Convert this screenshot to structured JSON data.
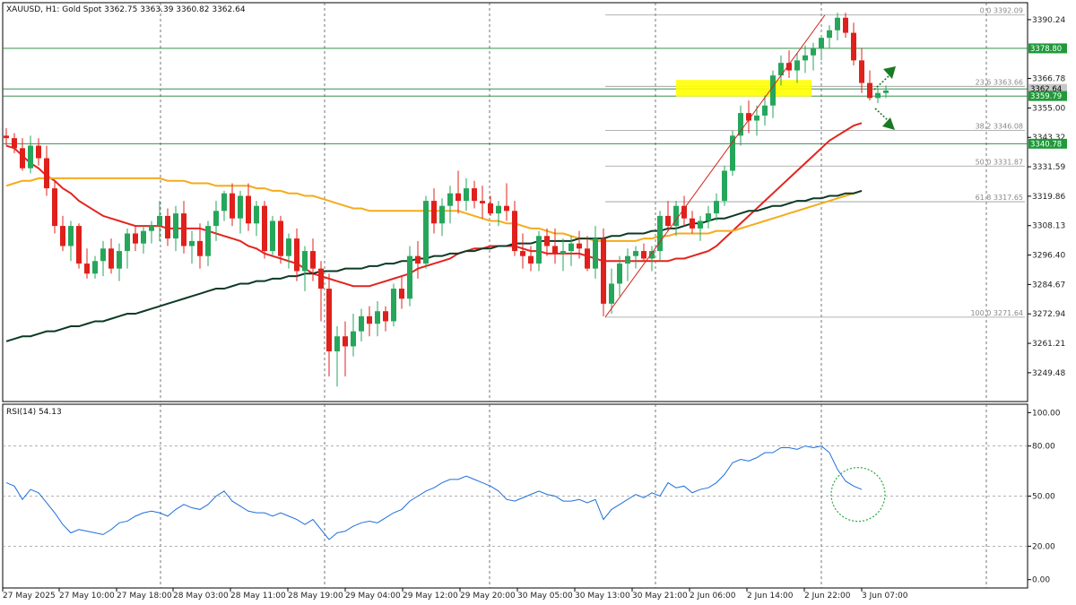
{
  "header": {
    "main_title": "XAUUSD, H1:  Gold Spot  3362.75 3363.39 3360.82 3362.64",
    "rsi_title": "RSI(14) 54.13"
  },
  "colors": {
    "bull": "#26a65b",
    "bear": "#e0201b",
    "ma_fast": "#e3241e",
    "ma_mid": "#f5ab1b",
    "ma_slow": "#0b3a24",
    "rsi": "#1e6fd9",
    "level_line": "#1e7f34",
    "fib_line": "#9a9a9a",
    "highlight": "#ffff00",
    "arrow": "#1a7a23"
  },
  "chart_data": [
    {
      "type": "candlestick",
      "symbol": "XAUUSD",
      "timeframe": "H1",
      "ylim": [
        3238,
        3397
      ],
      "y_ticks": [
        "3390.24",
        "3366.78",
        "3355.00",
        "3343.32",
        "3331.59",
        "3319.86",
        "3308.13",
        "3296.40",
        "3284.67",
        "3272.94",
        "3261.21",
        "3249.48"
      ],
      "x_labels": [
        "27 May 2025",
        "27 May 10:00",
        "27 May 18:00",
        "28 May 03:00",
        "28 May 11:00",
        "28 May 19:00",
        "29 May 04:00",
        "29 May 12:00",
        "29 May 20:00",
        "30 May 05:00",
        "30 May 13:00",
        "30 May 21:00",
        "2 Jun 06:00",
        "2 Jun 14:00",
        "2 Jun 22:00",
        "3 Jun 07:00"
      ],
      "price_badges": [
        {
          "label": "3378.80",
          "value": 3378.8,
          "style": "green"
        },
        {
          "label": "3362.64",
          "value": 3362.64,
          "style": "gray"
        },
        {
          "label": "3359.79",
          "value": 3359.79,
          "style": "green"
        },
        {
          "label": "3340.78",
          "value": 3340.78,
          "style": "green"
        }
      ],
      "horizontal_levels": [
        3378.8,
        3362.64,
        3359.79,
        3340.78
      ],
      "fibonacci": [
        {
          "label": "0.0 3392.09",
          "value": 3392.09
        },
        {
          "label": "23.6 3363.66",
          "value": 3363.66
        },
        {
          "label": "38.2 3346.08",
          "value": 3346.08
        },
        {
          "label": "50.0 3331.87",
          "value": 3331.87
        },
        {
          "label": "61.8 3317.65",
          "value": 3317.65
        },
        {
          "label": "100.0 3271.64",
          "value": 3271.64
        }
      ],
      "candles": [
        [
          3344,
          3347,
          3340,
          3343
        ],
        [
          3343,
          3345,
          3337,
          3339
        ],
        [
          3339,
          3343,
          3330,
          3331
        ],
        [
          3331,
          3344,
          3329,
          3340
        ],
        [
          3340,
          3343,
          3332,
          3335
        ],
        [
          3335,
          3340,
          3320,
          3323
        ],
        [
          3323,
          3326,
          3305,
          3308
        ],
        [
          3308,
          3312,
          3298,
          3300
        ],
        [
          3300,
          3310,
          3294,
          3308
        ],
        [
          3308,
          3309,
          3291,
          3293
        ],
        [
          3293,
          3299,
          3287,
          3289
        ],
        [
          3289,
          3296,
          3287,
          3294
        ],
        [
          3294,
          3302,
          3288,
          3299
        ],
        [
          3299,
          3303,
          3289,
          3291
        ],
        [
          3291,
          3301,
          3286,
          3298
        ],
        [
          3298,
          3307,
          3291,
          3305
        ],
        [
          3305,
          3308,
          3298,
          3301
        ],
        [
          3301,
          3308,
          3297,
          3306
        ],
        [
          3306,
          3310,
          3301,
          3308
        ],
        [
          3308,
          3318,
          3302,
          3312
        ],
        [
          3312,
          3315,
          3300,
          3303
        ],
        [
          3303,
          3316,
          3298,
          3313
        ],
        [
          3313,
          3318,
          3297,
          3300
        ],
        [
          3300,
          3306,
          3293,
          3302
        ],
        [
          3302,
          3309,
          3291,
          3296
        ],
        [
          3296,
          3310,
          3292,
          3308
        ],
        [
          3308,
          3318,
          3302,
          3314
        ],
        [
          3314,
          3322,
          3310,
          3321
        ],
        [
          3321,
          3325,
          3308,
          3311
        ],
        [
          3311,
          3322,
          3305,
          3320
        ],
        [
          3320,
          3325,
          3306,
          3309
        ],
        [
          3309,
          3318,
          3304,
          3316
        ],
        [
          3316,
          3318,
          3295,
          3298
        ],
        [
          3298,
          3312,
          3296,
          3310
        ],
        [
          3310,
          3312,
          3293,
          3296
        ],
        [
          3296,
          3305,
          3291,
          3303
        ],
        [
          3303,
          3307,
          3286,
          3290
        ],
        [
          3290,
          3300,
          3282,
          3298
        ],
        [
          3298,
          3303,
          3286,
          3291
        ],
        [
          3291,
          3294,
          3270,
          3283
        ],
        [
          3283,
          3289,
          3248,
          3258
        ],
        [
          3258,
          3268,
          3244,
          3264
        ],
        [
          3264,
          3270,
          3248,
          3260
        ],
        [
          3260,
          3273,
          3256,
          3266
        ],
        [
          3266,
          3275,
          3262,
          3272
        ],
        [
          3272,
          3276,
          3264,
          3269
        ],
        [
          3269,
          3278,
          3264,
          3274
        ],
        [
          3274,
          3276,
          3266,
          3270
        ],
        [
          3270,
          3285,
          3268,
          3283
        ],
        [
          3283,
          3288,
          3275,
          3279
        ],
        [
          3279,
          3300,
          3276,
          3296
        ],
        [
          3296,
          3302,
          3287,
          3293
        ],
        [
          3293,
          3320,
          3291,
          3318
        ],
        [
          3318,
          3323,
          3305,
          3309
        ],
        [
          3309,
          3319,
          3304,
          3316
        ],
        [
          3316,
          3324,
          3309,
          3321
        ],
        [
          3321,
          3330,
          3313,
          3318
        ],
        [
          3318,
          3327,
          3314,
          3323
        ],
        [
          3323,
          3326,
          3315,
          3318
        ],
        [
          3318,
          3324,
          3311,
          3317
        ],
        [
          3317,
          3320,
          3312,
          3313
        ],
        [
          3313,
          3318,
          3308,
          3316
        ],
        [
          3316,
          3325,
          3310,
          3314
        ],
        [
          3314,
          3318,
          3296,
          3298
        ],
        [
          3298,
          3305,
          3291,
          3296
        ],
        [
          3296,
          3300,
          3290,
          3293
        ],
        [
          3293,
          3306,
          3290,
          3304
        ],
        [
          3304,
          3307,
          3296,
          3300
        ],
        [
          3300,
          3307,
          3293,
          3297
        ],
        [
          3297,
          3303,
          3290,
          3298
        ],
        [
          3298,
          3304,
          3292,
          3301
        ],
        [
          3301,
          3306,
          3295,
          3299
        ],
        [
          3299,
          3304,
          3290,
          3291
        ],
        [
          3291,
          3308,
          3287,
          3303
        ],
        [
          3303,
          3307,
          3272,
          3277
        ],
        [
          3277,
          3291,
          3273,
          3285
        ],
        [
          3285,
          3296,
          3280,
          3293
        ],
        [
          3293,
          3299,
          3286,
          3296
        ],
        [
          3296,
          3300,
          3291,
          3298
        ],
        [
          3298,
          3301,
          3294,
          3295
        ],
        [
          3295,
          3300,
          3290,
          3298
        ],
        [
          3298,
          3314,
          3294,
          3312
        ],
        [
          3312,
          3318,
          3306,
          3308
        ],
        [
          3308,
          3318,
          3304,
          3316
        ],
        [
          3316,
          3320,
          3308,
          3311
        ],
        [
          3311,
          3314,
          3305,
          3307
        ],
        [
          3307,
          3312,
          3302,
          3310
        ],
        [
          3310,
          3316,
          3307,
          3313
        ],
        [
          3313,
          3321,
          3310,
          3318
        ],
        [
          3318,
          3332,
          3316,
          3330
        ],
        [
          3330,
          3346,
          3328,
          3344
        ],
        [
          3344,
          3356,
          3340,
          3353
        ],
        [
          3353,
          3358,
          3345,
          3350
        ],
        [
          3350,
          3356,
          3344,
          3352
        ],
        [
          3352,
          3360,
          3348,
          3356
        ],
        [
          3356,
          3370,
          3351,
          3368
        ],
        [
          3368,
          3376,
          3364,
          3373
        ],
        [
          3373,
          3378,
          3367,
          3370
        ],
        [
          3370,
          3377,
          3365,
          3374
        ],
        [
          3374,
          3380,
          3369,
          3376
        ],
        [
          3376,
          3381,
          3370,
          3379
        ],
        [
          3379,
          3384,
          3374,
          3383
        ],
        [
          3383,
          3388,
          3379,
          3386
        ],
        [
          3386,
          3393,
          3382,
          3391
        ],
        [
          3391,
          3393,
          3383,
          3385
        ],
        [
          3385,
          3389,
          3372,
          3374
        ],
        [
          3374,
          3379,
          3361,
          3365
        ],
        [
          3365,
          3370,
          3358,
          3359
        ],
        [
          3359,
          3363,
          3357,
          3361
        ],
        [
          3361,
          3364,
          3359,
          3362
        ]
      ],
      "rsi": {
        "label": "RSI(14)",
        "value": 54.13,
        "ylim": [
          0,
          100
        ],
        "levels": [
          80,
          50,
          20
        ],
        "tick_labels": [
          "100.00",
          "80.00",
          "50.00",
          "20.00",
          "0.00"
        ],
        "values": [
          58,
          56,
          48,
          54,
          52,
          46,
          40,
          33,
          28,
          30,
          29,
          28,
          27,
          30,
          34,
          35,
          38,
          40,
          41,
          40,
          38,
          42,
          45,
          43,
          42,
          45,
          50,
          53,
          47,
          44,
          41,
          40,
          40,
          38,
          40,
          38,
          36,
          33,
          36,
          30,
          24,
          28,
          29,
          32,
          34,
          35,
          34,
          37,
          40,
          42,
          47,
          50,
          53,
          55,
          58,
          60,
          60,
          62,
          60,
          58,
          56,
          53,
          48,
          47,
          49,
          51,
          53,
          51,
          50,
          47,
          47,
          48,
          46,
          48,
          36,
          42,
          45,
          48,
          51,
          49,
          52,
          50,
          58,
          55,
          56,
          52,
          54,
          55,
          58,
          63,
          70,
          72,
          71,
          73,
          76,
          76,
          79,
          79,
          78,
          80,
          79,
          80,
          76,
          66,
          59,
          56,
          54
        ]
      },
      "moving_averages": [
        {
          "name": "fast",
          "values": [
            3340,
            3339,
            3336,
            3333,
            3331,
            3328,
            3326,
            3323,
            3321,
            3318,
            3316,
            3314,
            3312,
            3311,
            3310,
            3309,
            3308,
            3308,
            3308,
            3308,
            3307,
            3307,
            3307,
            3307,
            3307,
            3306,
            3305,
            3304,
            3303,
            3302,
            3300,
            3299,
            3297,
            3296,
            3295,
            3294,
            3293,
            3291,
            3289,
            3288,
            3287,
            3286,
            3285,
            3284,
            3284,
            3284,
            3285,
            3286,
            3287,
            3288,
            3289,
            3291,
            3292,
            3293,
            3294,
            3295,
            3297,
            3298,
            3299,
            3299,
            3300,
            3300,
            3300,
            3300,
            3299,
            3298,
            3298,
            3297,
            3297,
            3297,
            3297,
            3297,
            3296,
            3295,
            3294,
            3294,
            3294,
            3294,
            3294,
            3294,
            3294,
            3294,
            3294,
            3295,
            3295,
            3296,
            3297,
            3298,
            3300,
            3303,
            3306,
            3309,
            3312,
            3315,
            3318,
            3321,
            3324,
            3327,
            3330,
            3333,
            3336,
            3339,
            3342,
            3344,
            3346,
            3348,
            3349
          ]
        },
        {
          "name": "mid",
          "values": [
            3324,
            3325,
            3326,
            3326,
            3327,
            3327,
            3327,
            3327,
            3327,
            3327,
            3327,
            3327,
            3327,
            3327,
            3327,
            3327,
            3327,
            3327,
            3327,
            3327,
            3326,
            3326,
            3326,
            3325,
            3325,
            3325,
            3324,
            3324,
            3324,
            3324,
            3324,
            3323,
            3323,
            3322,
            3322,
            3321,
            3321,
            3320,
            3320,
            3319,
            3318,
            3317,
            3316,
            3315,
            3315,
            3314,
            3314,
            3314,
            3314,
            3314,
            3314,
            3314,
            3314,
            3314,
            3314,
            3314,
            3314,
            3313,
            3312,
            3311,
            3310,
            3310,
            3309,
            3309,
            3308,
            3307,
            3307,
            3306,
            3305,
            3305,
            3304,
            3303,
            3303,
            3302,
            3302,
            3302,
            3302,
            3302,
            3302,
            3303,
            3303,
            3304,
            3304,
            3305,
            3305,
            3305,
            3305,
            3305,
            3306,
            3306,
            3306,
            3307,
            3308,
            3309,
            3310,
            3311,
            3312,
            3313,
            3314,
            3315,
            3316,
            3317,
            3318,
            3319,
            3320,
            3321,
            3322
          ]
        },
        {
          "name": "slow",
          "values": [
            3262,
            3263,
            3264,
            3264,
            3265,
            3266,
            3266,
            3267,
            3268,
            3268,
            3269,
            3270,
            3270,
            3271,
            3272,
            3273,
            3273,
            3274,
            3275,
            3276,
            3277,
            3278,
            3279,
            3280,
            3281,
            3282,
            3283,
            3283,
            3284,
            3285,
            3285,
            3286,
            3286,
            3287,
            3287,
            3288,
            3288,
            3289,
            3289,
            3290,
            3290,
            3290,
            3291,
            3291,
            3291,
            3292,
            3292,
            3293,
            3293,
            3294,
            3294,
            3295,
            3295,
            3296,
            3296,
            3297,
            3297,
            3298,
            3298,
            3299,
            3299,
            3300,
            3300,
            3301,
            3301,
            3301,
            3302,
            3302,
            3302,
            3302,
            3302,
            3303,
            3303,
            3303,
            3303,
            3304,
            3304,
            3305,
            3305,
            3305,
            3306,
            3306,
            3307,
            3307,
            3308,
            3309,
            3309,
            3310,
            3311,
            3311,
            3312,
            3313,
            3314,
            3314,
            3315,
            3316,
            3316,
            3317,
            3318,
            3318,
            3319,
            3319,
            3320,
            3320,
            3321,
            3321,
            3322
          ]
        }
      ]
    }
  ]
}
